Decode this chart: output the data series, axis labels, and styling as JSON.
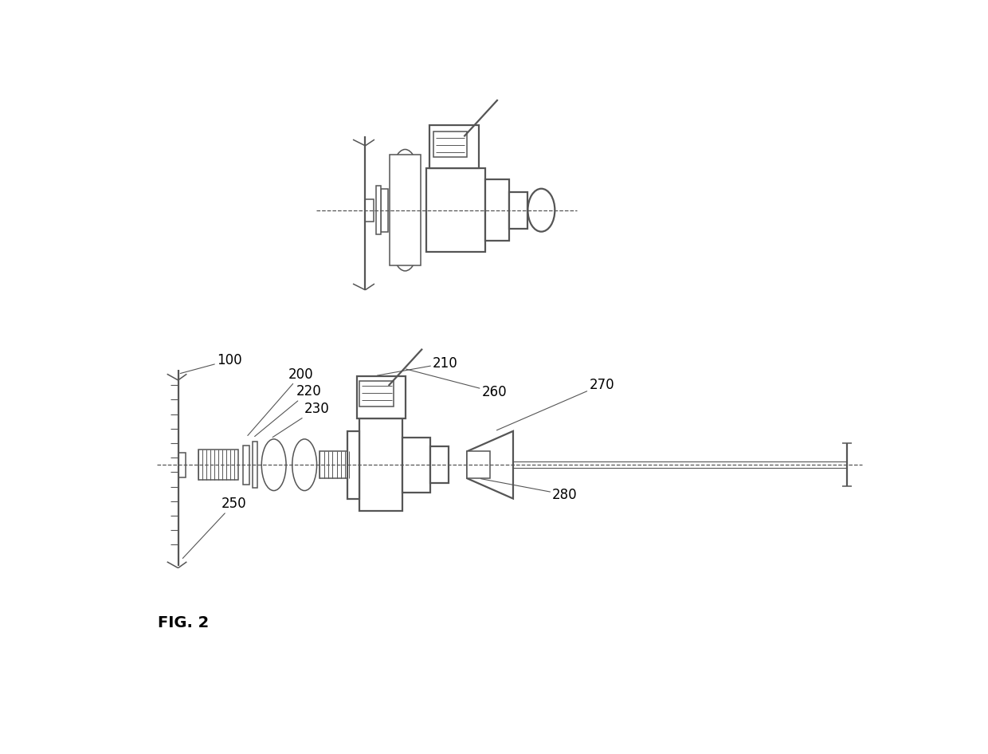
{
  "background_color": "#ffffff",
  "line_color": "#555555",
  "fig_label": "FIG. 2",
  "label_fontsize": 12
}
